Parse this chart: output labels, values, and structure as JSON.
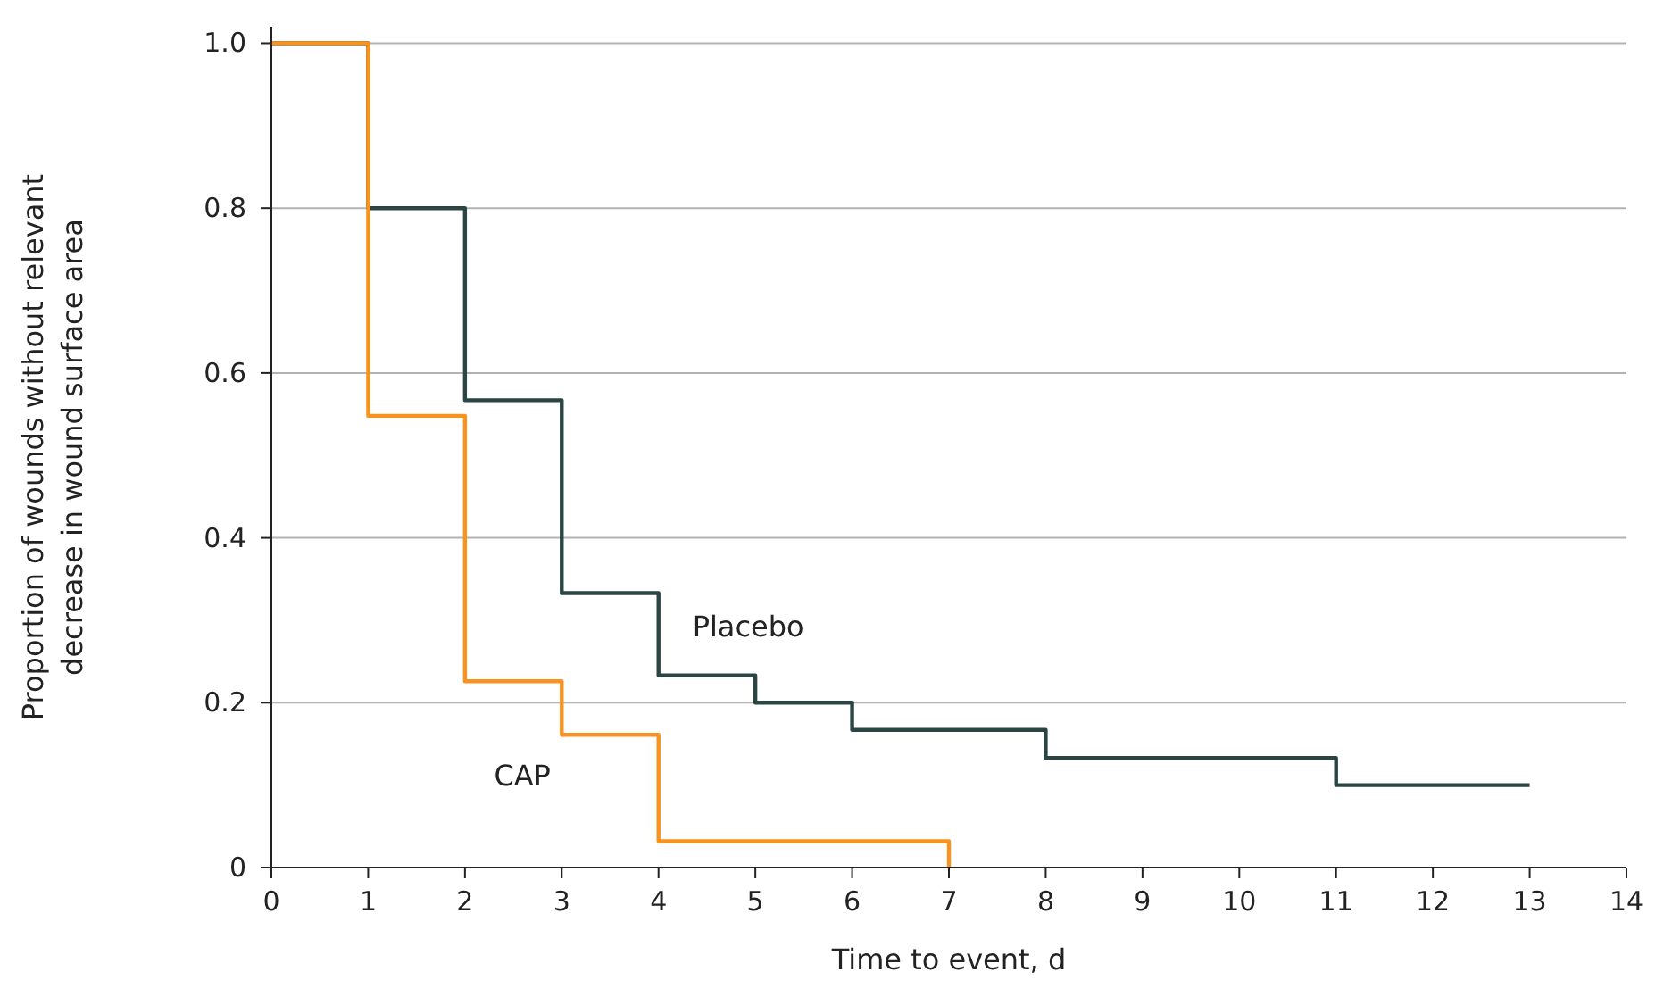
{
  "chart_data": {
    "type": "step",
    "xlabel": "Time to event, d",
    "ylabel": "Proportion of wounds without relevant decrease in wound surface area",
    "xlim": [
      0,
      14
    ],
    "xticks": [
      0,
      1,
      2,
      3,
      4,
      5,
      6,
      7,
      8,
      9,
      10,
      11,
      12,
      13,
      14
    ],
    "ylim": [
      0,
      1.02
    ],
    "yticks": [
      0,
      0.2,
      0.4,
      0.6,
      0.8,
      {
        "value": 1,
        "label": "1.0"
      }
    ],
    "grid": "y",
    "series": [
      {
        "name": "Placebo",
        "color": "#2b4545",
        "x": [
          0,
          1,
          2,
          3,
          4,
          5,
          6,
          8,
          11,
          13
        ],
        "values": [
          1,
          0.8,
          0.567,
          0.333,
          0.233,
          0.2,
          0.167,
          0.133,
          0.1,
          0.1
        ]
      },
      {
        "name": "CAP",
        "color": "#f7931e",
        "x": [
          0,
          1,
          2,
          3,
          4,
          7
        ],
        "values": [
          1,
          0.548,
          0.226,
          0.161,
          0.032,
          0
        ]
      }
    ]
  }
}
